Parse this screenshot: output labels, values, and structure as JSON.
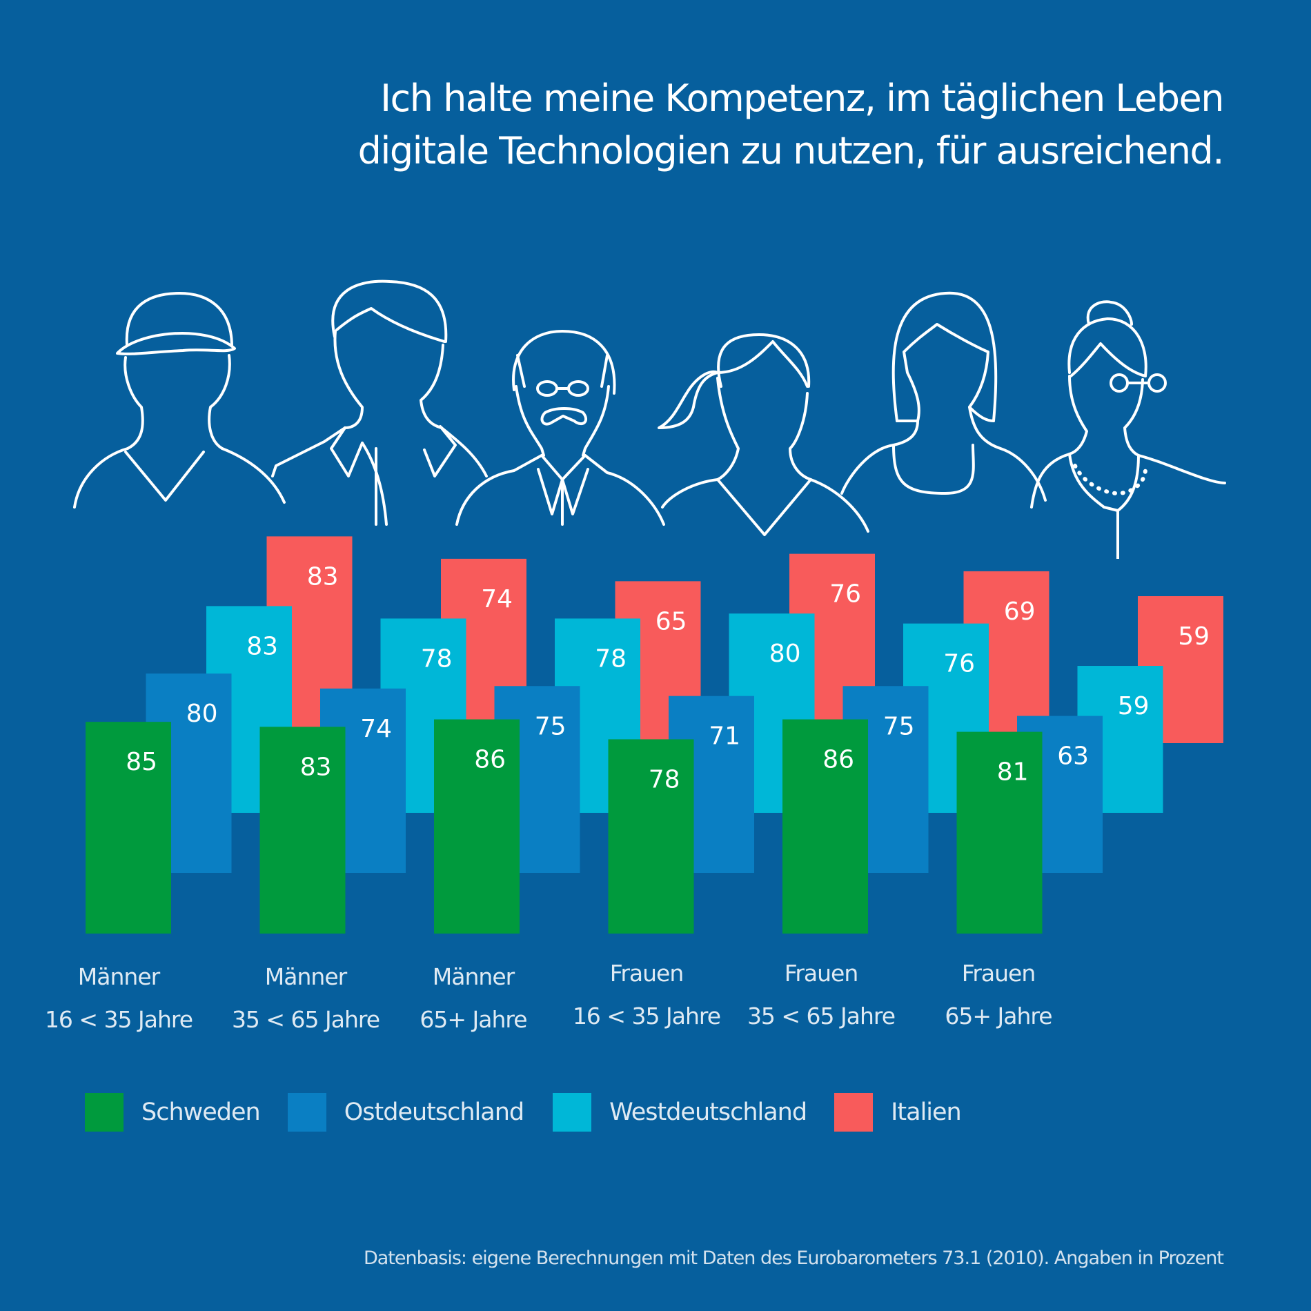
{
  "title": {
    "line1": "Ich halte meine Kompetenz, im täglichen Leben",
    "line2": "digitale Technologien zu nutzen, für ausreichend."
  },
  "chart_data": {
    "type": "bar",
    "title": "Ich halte meine Kompetenz, im täglichen Leben digitale Technologien zu nutzen, für ausreichend.",
    "xlabel": "",
    "ylabel": "Prozent",
    "categories": [
      {
        "line1": "Männer",
        "line2": "16 < 35 Jahre"
      },
      {
        "line1": "Männer",
        "line2": "35 < 65 Jahre"
      },
      {
        "line1": "Männer",
        "line2": "65+ Jahre"
      },
      {
        "line1": "Frauen",
        "line2": "16 < 35 Jahre"
      },
      {
        "line1": "Frauen",
        "line2": "35 < 65 Jahre"
      },
      {
        "line1": "Frauen",
        "line2": "65+ Jahre"
      }
    ],
    "series": [
      {
        "name": "Schweden",
        "color": "#009a3d",
        "values": [
          85,
          83,
          86,
          78,
          86,
          81
        ]
      },
      {
        "name": "Ostdeutschland",
        "color": "#0a7fc3",
        "values": [
          80,
          74,
          75,
          71,
          75,
          63
        ]
      },
      {
        "name": "Westdeutschland",
        "color": "#00b7d7",
        "values": [
          83,
          78,
          78,
          80,
          76,
          59
        ]
      },
      {
        "name": "Italien",
        "color": "#f85b5b",
        "values": [
          83,
          74,
          65,
          76,
          69,
          59
        ]
      }
    ],
    "legend_position": "bottom",
    "grid": false
  },
  "people": [
    {
      "icon": "young-man-cap-icon"
    },
    {
      "icon": "middle-aged-man-icon"
    },
    {
      "icon": "old-man-glasses-mustache-icon"
    },
    {
      "icon": "young-woman-ponytail-icon"
    },
    {
      "icon": "middle-aged-woman-icon"
    },
    {
      "icon": "old-woman-bun-glasses-icon"
    }
  ],
  "footer": "Datenbasis: eigene Berechnungen mit Daten des Eurobarometers 73.1  (2010). Angaben in Prozent"
}
